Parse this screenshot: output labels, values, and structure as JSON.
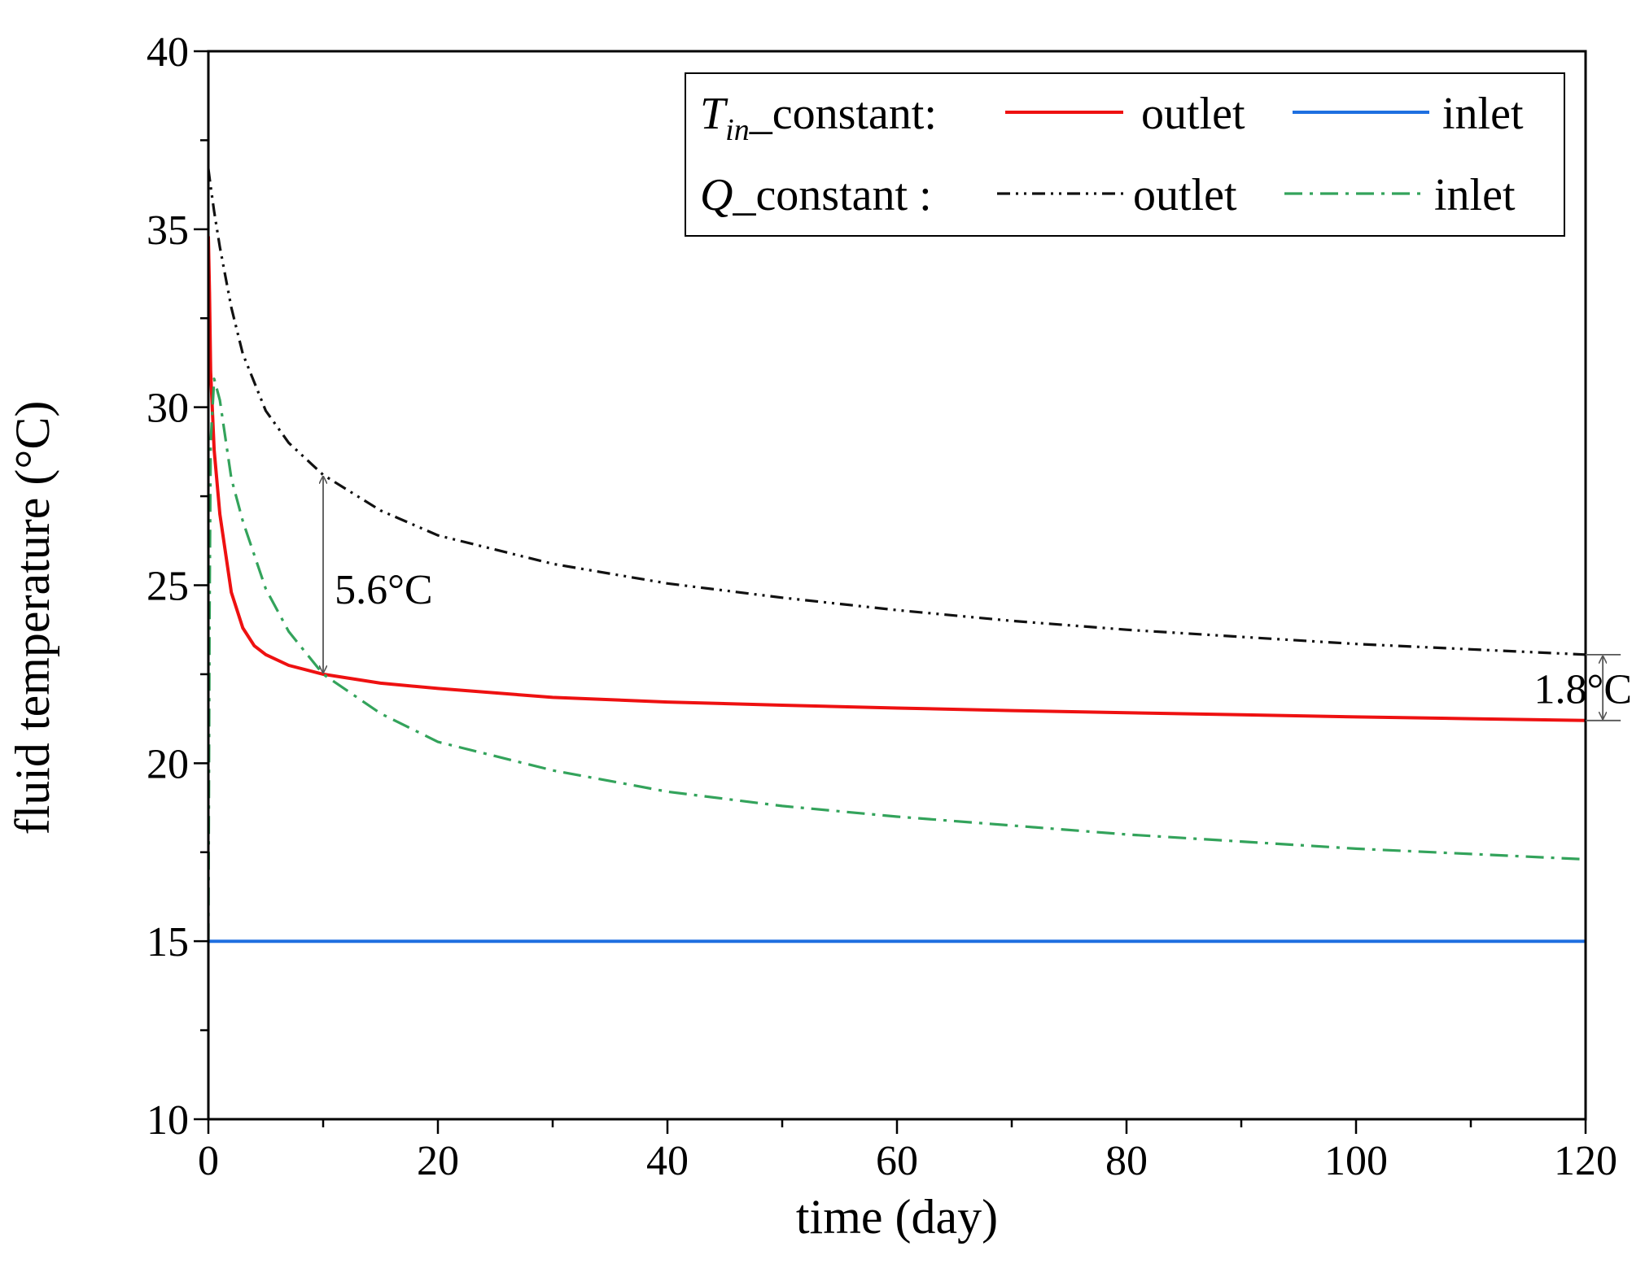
{
  "chart_data": {
    "type": "line",
    "title": "",
    "xlabel": "time (day)",
    "ylabel": "fluid temperature (°C)",
    "xlim": [
      0,
      120
    ],
    "ylim": [
      10,
      40
    ],
    "xticks": [
      0,
      20,
      40,
      60,
      80,
      100,
      120
    ],
    "yticks": [
      10,
      15,
      20,
      25,
      30,
      35,
      40
    ],
    "grid": false,
    "legend": {
      "placement": "top-right",
      "rows": [
        {
          "label_main": "T",
          "label_sub": "in",
          "label_rest": "_constant:",
          "label_math": true
        },
        {
          "label_main": "Q",
          "label_sub": "",
          "label_rest": "_constant :",
          "label_math": true
        }
      ]
    },
    "series": [
      {
        "name": "outlet",
        "group": "T_in_constant",
        "color": "#ee1111",
        "dash": "solid",
        "x": [
          0,
          0.1,
          0.2,
          0.5,
          1,
          2,
          3,
          4,
          5,
          7,
          10,
          15,
          20,
          30,
          40,
          50,
          60,
          70,
          80,
          90,
          100,
          110,
          120
        ],
        "y": [
          34.8,
          33.2,
          31.0,
          28.8,
          27.0,
          24.8,
          23.8,
          23.3,
          23.05,
          22.75,
          22.5,
          22.25,
          22.1,
          21.85,
          21.72,
          21.63,
          21.55,
          21.48,
          21.42,
          21.36,
          21.3,
          21.25,
          21.2
        ]
      },
      {
        "name": "inlet",
        "group": "T_in_constant",
        "color": "#1e6fe0",
        "dash": "solid",
        "x": [
          0,
          120
        ],
        "y": [
          15.0,
          15.0
        ]
      },
      {
        "name": "outlet",
        "group": "Q_constant",
        "color": "#111111",
        "dash": "dash-dot-dot",
        "x": [
          0,
          0.2,
          0.5,
          1,
          2,
          3,
          5,
          7,
          10,
          15,
          20,
          30,
          40,
          50,
          60,
          70,
          80,
          90,
          100,
          110,
          120
        ],
        "y": [
          36.7,
          36.2,
          35.5,
          34.5,
          32.8,
          31.5,
          29.9,
          29.0,
          28.1,
          27.1,
          26.4,
          25.6,
          25.05,
          24.65,
          24.3,
          24.0,
          23.75,
          23.55,
          23.35,
          23.2,
          23.05
        ]
      },
      {
        "name": "inlet",
        "group": "Q_constant",
        "color": "#33a35b",
        "dash": "dash-dot",
        "x": [
          0,
          0.1,
          0.2,
          0.5,
          1,
          2,
          3,
          5,
          7,
          10,
          15,
          20,
          30,
          40,
          50,
          60,
          70,
          80,
          90,
          100,
          110,
          120
        ],
        "y": [
          15.0,
          24.0,
          29.0,
          30.8,
          30.2,
          28.0,
          26.8,
          24.9,
          23.7,
          22.5,
          21.4,
          20.6,
          19.8,
          19.2,
          18.8,
          18.5,
          18.25,
          18.0,
          17.8,
          17.6,
          17.45,
          17.3
        ]
      }
    ],
    "annotations": [
      {
        "text": "5.6°C",
        "x": 10,
        "y_top": 28.1,
        "y_bottom": 22.5,
        "text_x": 11,
        "text_y": 24.9
      },
      {
        "text": "1.8°C",
        "x": 121.5,
        "y_top": 23.05,
        "y_bottom": 21.2,
        "text_x": 115.5,
        "text_y": 22.1
      }
    ]
  }
}
